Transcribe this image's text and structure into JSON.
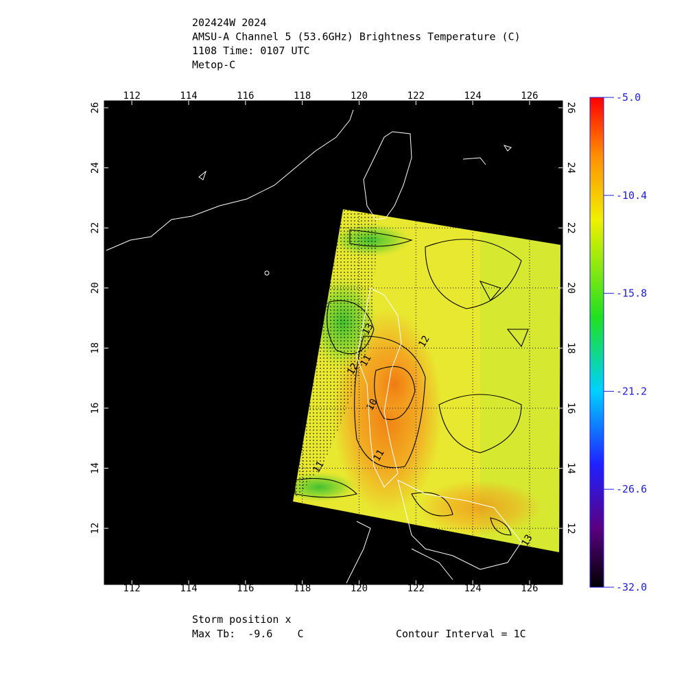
{
  "header": {
    "lines": [
      "202424W 2024",
      "AMSU-A Channel 5 (53.6GHz) Brightness Temperature (C)",
      "1108 Time: 0107 UTC",
      "Metop-C"
    ]
  },
  "map": {
    "xlim": [
      111.03,
      127.16
    ],
    "ylim": [
      10.13,
      26.23
    ],
    "xticks": [
      112,
      114,
      116,
      118,
      120,
      122,
      124,
      126
    ],
    "yticks": [
      12,
      14,
      16,
      18,
      20,
      22,
      24,
      26
    ],
    "contour_labels": [
      "13",
      "12",
      "11",
      "10",
      "11",
      "11",
      "13",
      "12"
    ]
  },
  "colorbar": {
    "range": [
      -32,
      -5
    ],
    "ticks": [
      {
        "value": -5,
        "label": "-5.0"
      },
      {
        "value": -10.4,
        "label": "-10.4"
      },
      {
        "value": -15.8,
        "label": "-15.8"
      },
      {
        "value": -21.2,
        "label": "-21.2"
      },
      {
        "value": -26.6,
        "label": "-26.6"
      },
      {
        "value": -32,
        "label": "-32.0"
      }
    ]
  },
  "footer": {
    "storm": "Storm position x",
    "max_tb": "Max Tb:  -9.6    C",
    "contour_interval": "Contour Interval = 1C"
  }
}
